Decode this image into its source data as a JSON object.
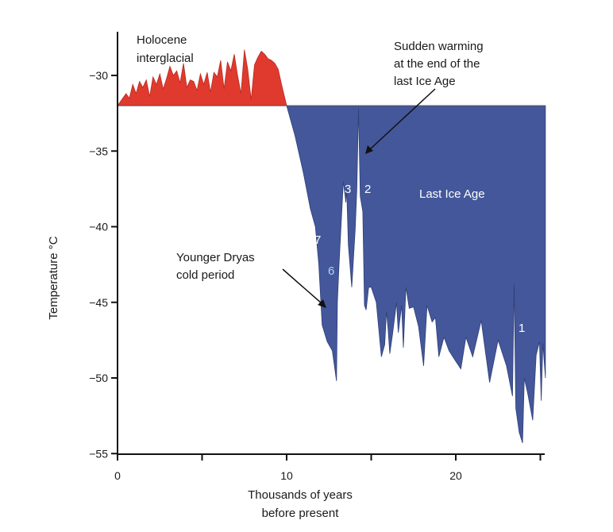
{
  "chart_data": {
    "type": "area",
    "xlabel_line1": "Thousands of years",
    "xlabel_line2": "before present",
    "ylabel": "Temperature °C",
    "xlim": [
      0,
      25.3
    ],
    "ylim": [
      -55,
      -27
    ],
    "x_ticks": [
      0,
      10,
      20
    ],
    "y_ticks": [
      "−30",
      "−35",
      "−40",
      "−45",
      "−50",
      "−55"
    ],
    "baseline": -32,
    "grid": false,
    "colors": {
      "holocene": "#e03a2e",
      "ice_age": "#44579a",
      "baseline": "#555555"
    },
    "series": [
      {
        "name": "Holocene interglacial",
        "x": [
          0.0,
          0.5,
          0.7,
          0.9,
          1.1,
          1.3,
          1.5,
          1.7,
          1.9,
          2.1,
          2.3,
          2.5,
          2.7,
          2.9,
          3.1,
          3.3,
          3.5,
          3.7,
          3.9,
          4.1,
          4.3,
          4.5,
          4.7,
          4.9,
          5.1,
          5.3,
          5.5,
          5.7,
          5.9,
          6.1,
          6.3,
          6.5,
          6.7,
          6.9,
          7.1,
          7.3,
          7.5,
          7.7,
          7.9,
          8.1,
          8.3,
          8.5,
          8.7,
          8.9,
          9.1,
          9.3,
          9.5,
          9.7,
          10.0
        ],
        "y": [
          -32,
          -31.2,
          -31.5,
          -30.6,
          -31.2,
          -30.4,
          -30.8,
          -30.3,
          -31.4,
          -30.1,
          -30.6,
          -29.9,
          -30.9,
          -30.2,
          -29.4,
          -30.0,
          -29.7,
          -30.5,
          -29.2,
          -30.8,
          -30.3,
          -30.4,
          -31.0,
          -29.9,
          -30.6,
          -29.8,
          -31.1,
          -29.8,
          -30.1,
          -29.0,
          -30.9,
          -29.1,
          -29.7,
          -28.6,
          -30.0,
          -31.2,
          -28.3,
          -29.6,
          -31.6,
          -29.3,
          -28.8,
          -28.4,
          -28.6,
          -28.9,
          -29.0,
          -29.2,
          -29.6,
          -30.6,
          -32
        ]
      },
      {
        "name": "Last Ice Age",
        "x": [
          10.0,
          10.5,
          11.0,
          11.4,
          11.7,
          11.9,
          12.1,
          12.4,
          12.7,
          12.95,
          13.0,
          13.1,
          13.35,
          13.5,
          13.55,
          13.65,
          13.85,
          14.05,
          14.15,
          14.25,
          14.35,
          14.5,
          14.6,
          14.7,
          14.85,
          15.0,
          15.3,
          15.6,
          15.8,
          15.9,
          16.0,
          16.1,
          16.25,
          16.5,
          16.6,
          16.8,
          16.9,
          17.05,
          17.25,
          17.5,
          17.8,
          18.1,
          18.3,
          18.6,
          18.8,
          19.0,
          19.3,
          19.6,
          20.0,
          20.3,
          20.6,
          21.0,
          21.5,
          22.0,
          22.5,
          23.0,
          23.35,
          23.45,
          23.55,
          23.75,
          23.95,
          24.05,
          24.25,
          24.55,
          24.75,
          24.95,
          25.05,
          25.15,
          25.3
        ],
        "y": [
          -32,
          -34.0,
          -36.5,
          -38.8,
          -40.0,
          -42.5,
          -46.5,
          -47.6,
          -48.2,
          -50.2,
          -45.0,
          -42.5,
          -37.0,
          -38.4,
          -37.5,
          -41.2,
          -44.0,
          -40.2,
          -37.5,
          -32.2,
          -38.0,
          -39.0,
          -45.2,
          -45.5,
          -44.0,
          -44.0,
          -45.0,
          -48.6,
          -47.8,
          -45.6,
          -46.8,
          -48.4,
          -47.2,
          -45.0,
          -47.0,
          -45.2,
          -48.0,
          -44.0,
          -45.4,
          -45.3,
          -46.6,
          -49.2,
          -45.2,
          -46.3,
          -46.0,
          -48.6,
          -47.3,
          -48.2,
          -48.9,
          -49.4,
          -47.3,
          -48.6,
          -46.2,
          -50.3,
          -47.5,
          -49.2,
          -51.2,
          -43.8,
          -52.0,
          -53.6,
          -54.3,
          -50.0,
          -51.0,
          -52.8,
          -48.5,
          -47.6,
          -51.5,
          -47.7,
          -50.0
        ]
      }
    ],
    "annotations": [
      {
        "id": "holocene",
        "lines": [
          "Holocene",
          "interglacial"
        ]
      },
      {
        "id": "warming",
        "lines": [
          "Sudden warming",
          "at the end of the",
          "last Ice Age"
        ]
      },
      {
        "id": "dryas",
        "lines": [
          "Younger Dryas",
          "cold period"
        ]
      },
      {
        "id": "iceage",
        "lines": [
          "Last Ice Age"
        ]
      }
    ],
    "event_labels": [
      "3",
      "2",
      "7",
      "6",
      "1"
    ],
    "event_colors": [
      "#ffffff",
      "#ffffff",
      "#ffffff",
      "#a9d4f5",
      "#ffffff"
    ]
  }
}
